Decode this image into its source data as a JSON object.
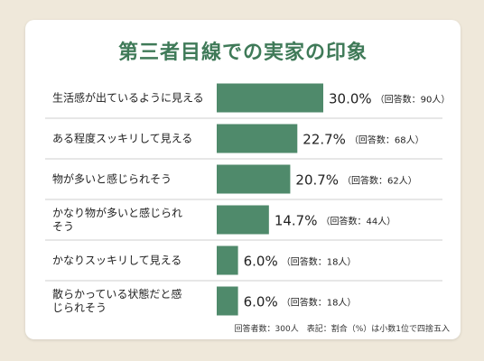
{
  "title": "第三者目線での実家の印象",
  "note": "回答者数：300人　表記：割合（%）は小数1位で四捨五入",
  "colors": {
    "bar": "#4f8a6b",
    "title": "#3f7a58",
    "divider": "#cfcfcf"
  },
  "chart_data": {
    "type": "bar",
    "orientation": "horizontal",
    "xlim": [
      0,
      30
    ],
    "categories": [
      "生活感が出ているように見える",
      "ある程度スッキリして見える",
      "物が多いと感じられそう",
      "かなり物が多いと感じられそう",
      "かなりスッキリして見える",
      "散らかっている状態だと感じられそう"
    ],
    "category_lines": [
      [
        "生活感が出ているように見える"
      ],
      [
        "ある程度スッキリして見える"
      ],
      [
        "物が多いと感じられそう"
      ],
      [
        "かなり物が多いと感じられ",
        "そう"
      ],
      [
        "かなりスッキリして見える"
      ],
      [
        "散らかっている状態だと感",
        "じられそう"
      ]
    ],
    "values": [
      30.0,
      22.7,
      20.7,
      14.7,
      6.0,
      6.0
    ],
    "value_labels": [
      "30.0%",
      "22.7%",
      "20.7%",
      "14.7%",
      "6.0%",
      "6.0%"
    ],
    "counts": [
      "（回答数：90人）",
      "（回答数：68人）",
      "（回答数：62人）",
      "（回答数：44人）",
      "（回答数：18人）",
      "（回答数：18人）"
    ]
  }
}
